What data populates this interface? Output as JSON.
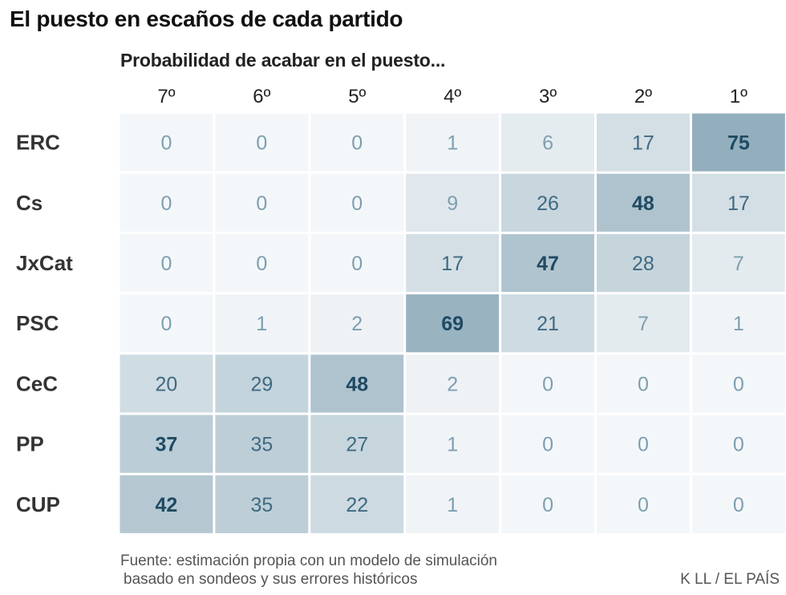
{
  "header": {
    "title": "El puesto en escaños de cada partido"
  },
  "chart_data": {
    "type": "heatmap",
    "title": "El puesto en escaños de cada partido",
    "subtitle": "Probabilidad de acabar en el puesto...",
    "columns": [
      "7º",
      "6º",
      "5º",
      "4º",
      "3º",
      "2º",
      "1º"
    ],
    "rows": [
      "ERC",
      "Cs",
      "JxCat",
      "PSC",
      "CeC",
      "PP",
      "CUP"
    ],
    "values": [
      [
        0,
        0,
        0,
        1,
        6,
        17,
        75
      ],
      [
        0,
        0,
        0,
        9,
        26,
        48,
        17
      ],
      [
        0,
        0,
        0,
        17,
        47,
        28,
        7
      ],
      [
        0,
        1,
        2,
        69,
        21,
        7,
        1
      ],
      [
        20,
        29,
        48,
        2,
        0,
        0,
        0
      ],
      [
        37,
        35,
        27,
        1,
        0,
        0,
        0
      ],
      [
        42,
        35,
        22,
        1,
        0,
        0,
        0
      ]
    ],
    "value_range": [
      0,
      75
    ],
    "colors": {
      "low": "#f4f7f9",
      "high": "#93afbd",
      "text_dark": "#1f4a63",
      "text_light": "#7d9fb0"
    }
  },
  "footer": {
    "source_line1": "Fuente: estimación propia con un modelo de simulación",
    "source_line2": "basado en sondeos y sus errores históricos",
    "credit": "K LL / EL PAÍS"
  }
}
